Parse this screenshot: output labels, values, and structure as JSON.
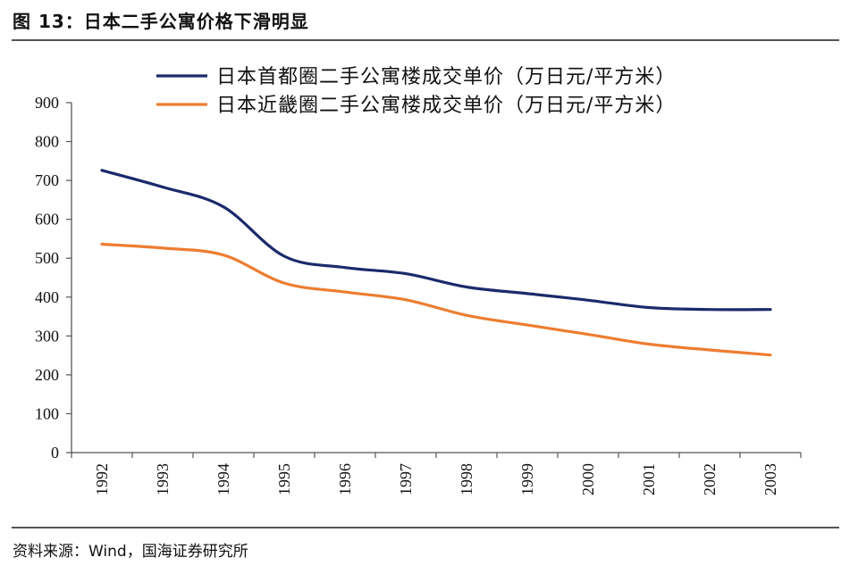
{
  "figure": {
    "title": "图 13：日本二手公寓价格下滑明显",
    "source": "资料来源：Wind，国海证券研究所"
  },
  "chart_data": {
    "type": "line",
    "title": "日本二手公寓价格下滑明显",
    "xlabel": "",
    "ylabel": "",
    "categories": [
      "1992",
      "1993",
      "1994",
      "1995",
      "1996",
      "1997",
      "1998",
      "1999",
      "2000",
      "2001",
      "2002",
      "2003"
    ],
    "ylim": [
      0,
      900
    ],
    "yticks": [
      0,
      100,
      200,
      300,
      400,
      500,
      600,
      700,
      800,
      900
    ],
    "grid": false,
    "legend_position": "top",
    "series": [
      {
        "name": "日本首都圈二手公寓楼成交单价（万日元/平方米）",
        "color": "#1b2a6b",
        "values": [
          726,
          683,
          632,
          505,
          476,
          460,
          426,
          409,
          392,
          373,
          368,
          368
        ]
      },
      {
        "name": "日本近畿圈二手公寓楼成交单价（万日元/平方米）",
        "color": "#ed7d31",
        "values": [
          536,
          526,
          508,
          436,
          413,
          393,
          353,
          328,
          304,
          279,
          264,
          251
        ]
      }
    ]
  }
}
